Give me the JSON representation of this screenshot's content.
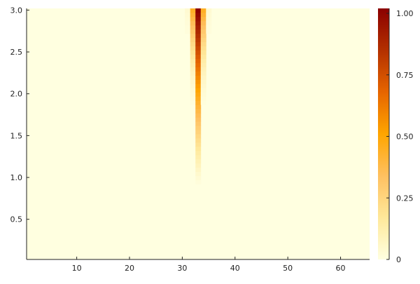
{
  "chart_data": {
    "type": "heatmap",
    "title": "",
    "xlabel": "",
    "ylabel": "",
    "x_range": [
      0.5,
      65.5
    ],
    "y_range": [
      0.02,
      3.02
    ],
    "x_cells": 65,
    "x_ticks": [
      10,
      20,
      30,
      40,
      50,
      60
    ],
    "y_ticks": [
      0.5,
      1.0,
      1.5,
      2.0,
      2.5,
      3.0
    ],
    "x_tick_labels": [
      "10",
      "20",
      "30",
      "40",
      "50",
      "60"
    ],
    "y_tick_labels": [
      "0.5",
      "1.0",
      "1.5",
      "2.0",
      "2.5",
      "3.0"
    ],
    "colorbar": {
      "min": 0,
      "max": 1.02,
      "ticks": [
        0,
        0.25,
        0.5,
        0.75,
        1.0
      ],
      "tick_labels": [
        "0",
        "0.25",
        "0.50",
        "0.75",
        "1.00"
      ],
      "colormap": [
        "#ffffe0",
        "#ffe89a",
        "#ffc060",
        "#ffa500",
        "#e66500",
        "#b33000",
        "#8b0000"
      ]
    },
    "peak": {
      "columns": [
        30,
        31,
        32,
        33,
        34,
        35,
        36
      ],
      "center_column": 33,
      "width": 1.1,
      "onset_y": 0.9,
      "full_y": 3.0,
      "max_value": 1.02
    },
    "grid": false,
    "legend": "none"
  }
}
